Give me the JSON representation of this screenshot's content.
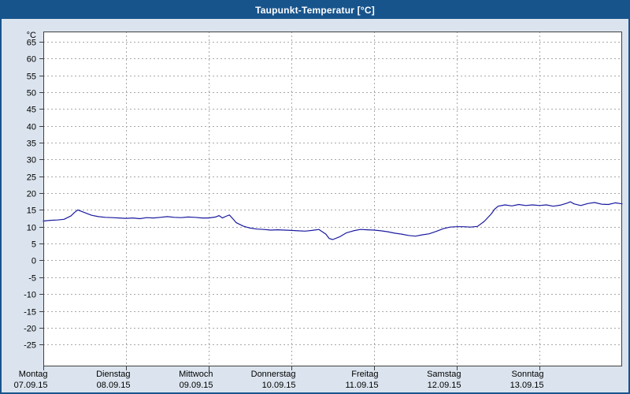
{
  "window": {
    "title": "Taupunkt-Temperatur [°C]"
  },
  "colors": {
    "titlebar": "#18548c",
    "titlebar_text": "#ffffff",
    "background": "#dbe4ee",
    "plot_background": "#ffffff",
    "grid": "#a8a8a8",
    "axis": "#404040",
    "line": "#1a1aa0",
    "label_text": "#000000"
  },
  "chart_data": {
    "type": "line",
    "title": "Taupunkt-Temperatur [°C]",
    "unit_label": "°C",
    "xlabel": "",
    "ylabel": "°C",
    "grid": "dashed",
    "legend_position": "none",
    "ylim": [
      -31.5,
      68
    ],
    "yticks": [
      65,
      60,
      55,
      50,
      45,
      40,
      35,
      30,
      25,
      20,
      15,
      10,
      5,
      0,
      -5,
      -10,
      -15,
      -20,
      -25
    ],
    "x_range_hours": [
      0,
      168
    ],
    "day_ticks": [
      {
        "hour": 0,
        "weekday": "Montag",
        "date": "07.09.15"
      },
      {
        "hour": 24,
        "weekday": "Dienstag",
        "date": "08.09.15"
      },
      {
        "hour": 48,
        "weekday": "Mittwoch",
        "date": "09.09.15"
      },
      {
        "hour": 72,
        "weekday": "Donnerstag",
        "date": "10.09.15"
      },
      {
        "hour": 96,
        "weekday": "Freitag",
        "date": "11.09.15"
      },
      {
        "hour": 120,
        "weekday": "Samstag",
        "date": "12.09.15"
      },
      {
        "hour": 144,
        "weekday": "Sonntag",
        "date": "13.09.15"
      }
    ],
    "series": [
      {
        "name": "Taupunkt",
        "color": "#1a1aa0",
        "x_hours": [
          0,
          2,
          4,
          6,
          8,
          9,
          10,
          11,
          12,
          14,
          16,
          18,
          20,
          22,
          24,
          26,
          28,
          30,
          32,
          34,
          36,
          38,
          40,
          42,
          44,
          46,
          48,
          50,
          51,
          52,
          53,
          54,
          55,
          56,
          58,
          60,
          62,
          64,
          66,
          68,
          70,
          72,
          74,
          76,
          78,
          80,
          82,
          83,
          84,
          86,
          88,
          90,
          92,
          94,
          96,
          98,
          100,
          102,
          104,
          106,
          108,
          110,
          112,
          114,
          116,
          118,
          120,
          122,
          124,
          126,
          128,
          130,
          131,
          132,
          134,
          136,
          138,
          140,
          142,
          144,
          146,
          148,
          150,
          152,
          153,
          154,
          156,
          158,
          160,
          162,
          164,
          166,
          168
        ],
        "values": [
          11.7,
          11.9,
          12.0,
          12.2,
          13.2,
          14.2,
          15.0,
          14.6,
          14.2,
          13.4,
          13.0,
          12.8,
          12.7,
          12.6,
          12.5,
          12.6,
          12.4,
          12.7,
          12.6,
          12.8,
          13.0,
          12.8,
          12.7,
          12.9,
          12.8,
          12.6,
          12.6,
          12.9,
          13.3,
          12.6,
          13.1,
          13.5,
          12.4,
          11.2,
          10.2,
          9.6,
          9.3,
          9.2,
          9.0,
          9.1,
          9.0,
          8.9,
          8.8,
          8.7,
          8.9,
          9.2,
          7.8,
          6.5,
          6.2,
          7.0,
          8.2,
          8.8,
          9.2,
          9.1,
          9.0,
          8.8,
          8.5,
          8.1,
          7.8,
          7.4,
          7.2,
          7.6,
          7.9,
          8.6,
          9.4,
          9.9,
          10.0,
          10.0,
          9.9,
          10.1,
          11.6,
          13.8,
          15.2,
          16.1,
          16.5,
          16.2,
          16.6,
          16.3,
          16.5,
          16.3,
          16.5,
          16.1,
          16.4,
          17.0,
          17.4,
          16.8,
          16.3,
          16.9,
          17.2,
          16.7,
          16.6,
          17.1,
          16.8
        ]
      }
    ]
  }
}
